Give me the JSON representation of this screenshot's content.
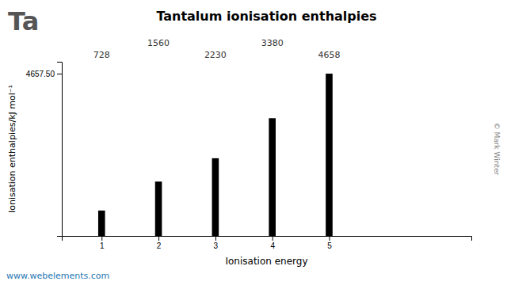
{
  "chart_data": {
    "type": "bar",
    "title": "Tantalum ionisation enthalpies",
    "xlabel": "Ionisation energy",
    "ylabel": "Ionisation enthalpies/kJ mol⁻¹",
    "x": [
      1,
      2,
      3,
      4,
      5
    ],
    "values": [
      728,
      1560,
      2230,
      3380,
      4658
    ],
    "color": "#000000",
    "xlim": [
      0.3,
      7.5
    ],
    "xticks": [
      1,
      2,
      3,
      4,
      5
    ],
    "ylim": [
      0,
      5000
    ],
    "yticks": [
      {
        "value": 4657.5,
        "label": "4657.50"
      }
    ],
    "data_labels": true,
    "annotations": [
      "Ta",
      "www.webelements.com",
      "© Mark Winter"
    ]
  }
}
